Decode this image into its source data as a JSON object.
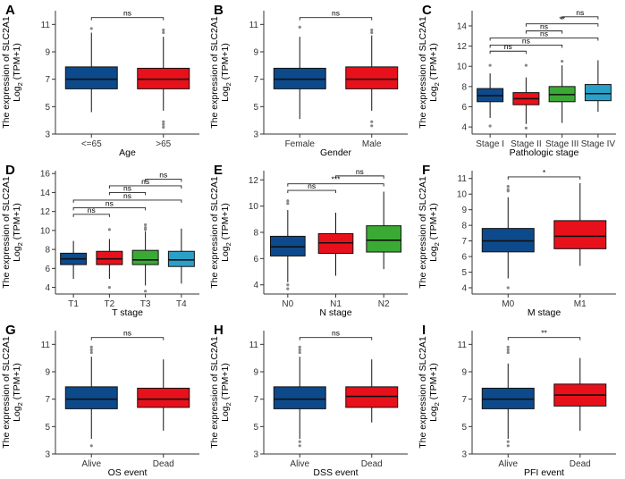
{
  "chart_data": [
    {
      "id": "A",
      "type": "box",
      "ylabel_line1": "The expression of SLC2A1",
      "ylabel_line2_main": "Log",
      "ylabel_line2_sub": "2",
      "ylabel_line2_rest": " (TPM+1)",
      "xlabel": "Age",
      "ylim": [
        3,
        12
      ],
      "yticks": [
        3,
        5,
        7,
        9,
        11
      ],
      "categories": [
        "<=65",
        ">65"
      ],
      "colors": [
        "#0d4a8c",
        "#e8111b"
      ],
      "boxes": [
        {
          "whislo": 4.6,
          "q1": 6.3,
          "med": 7.0,
          "q3": 7.9,
          "whishi": 10.4,
          "outliers": [
            10.7
          ]
        },
        {
          "whislo": 4.7,
          "q1": 6.3,
          "med": 7.0,
          "q3": 7.8,
          "whishi": 10.1,
          "outliers": [
            10.6,
            10.4,
            3.9,
            3.7,
            3.5
          ]
        }
      ],
      "comparisons": [
        {
          "from": 0,
          "to": 1,
          "label": "ns",
          "y": 11.5
        }
      ]
    },
    {
      "id": "B",
      "type": "box",
      "ylabel_line1": "The expression of SLC2A1",
      "ylabel_line2_main": "Log",
      "ylabel_line2_sub": "2",
      "ylabel_line2_rest": " (TPM+1)",
      "xlabel": "Gender",
      "ylim": [
        3,
        12
      ],
      "yticks": [
        3,
        5,
        7,
        9,
        11
      ],
      "categories": [
        "Female",
        "Male"
      ],
      "colors": [
        "#0d4a8c",
        "#e8111b"
      ],
      "boxes": [
        {
          "whislo": 4.1,
          "q1": 6.3,
          "med": 7.0,
          "q3": 7.8,
          "whishi": 10.1,
          "outliers": [
            10.8
          ]
        },
        {
          "whislo": 4.7,
          "q1": 6.3,
          "med": 7.0,
          "q3": 7.9,
          "whishi": 10.2,
          "outliers": [
            10.6,
            10.4,
            3.9,
            3.6
          ]
        }
      ],
      "comparisons": [
        {
          "from": 0,
          "to": 1,
          "label": "ns",
          "y": 11.5
        }
      ]
    },
    {
      "id": "C",
      "type": "box",
      "ylabel_line1": "The expression of SLC2A1",
      "ylabel_line2_main": "Log",
      "ylabel_line2_sub": "2",
      "ylabel_line2_rest": " (TPM+1)",
      "xlabel": "Pathologic stage",
      "ylim": [
        3.3,
        15.5
      ],
      "yticks": [
        4,
        6,
        8,
        10,
        12,
        14
      ],
      "categories": [
        "Stage I",
        "Stage II",
        "Stage III",
        "Stage IV"
      ],
      "colors": [
        "#0d4a8c",
        "#e8111b",
        "#3aaa35",
        "#2aa0c8"
      ],
      "boxes": [
        {
          "whislo": 4.9,
          "q1": 6.5,
          "med": 7.1,
          "q3": 7.8,
          "whishi": 9.3,
          "outliers": [
            10.1,
            4.1
          ]
        },
        {
          "whislo": 4.3,
          "q1": 6.2,
          "med": 6.8,
          "q3": 7.4,
          "whishi": 8.9,
          "outliers": [
            10.1,
            3.9
          ]
        },
        {
          "whislo": 4.4,
          "q1": 6.5,
          "med": 7.2,
          "q3": 8.0,
          "whishi": 10.1,
          "outliers": [
            10.5
          ]
        },
        {
          "whislo": 5.5,
          "q1": 6.6,
          "med": 7.3,
          "q3": 8.2,
          "whishi": 10.6,
          "outliers": []
        }
      ],
      "comparisons": [
        {
          "from": 0,
          "to": 1,
          "label": "ns",
          "y": 11.5
        },
        {
          "from": 0,
          "to": 2,
          "label": "ns",
          "y": 12.1
        },
        {
          "from": 0,
          "to": 3,
          "label": "ns",
          "y": 12.8
        },
        {
          "from": 1,
          "to": 2,
          "label": "ns",
          "y": 13.5
        },
        {
          "from": 1,
          "to": 3,
          "label": "**",
          "y": 14.2
        },
        {
          "from": 2,
          "to": 3,
          "label": "ns",
          "y": 14.9
        }
      ]
    },
    {
      "id": "D",
      "type": "box",
      "ylabel_line1": "The expression of SLC2A1",
      "ylabel_line2_main": "Log",
      "ylabel_line2_sub": "2",
      "ylabel_line2_rest": " (TPM+1)",
      "xlabel": "T stage",
      "ylim": [
        3.3,
        16.3
      ],
      "yticks": [
        4,
        6,
        8,
        10,
        12,
        14,
        16
      ],
      "categories": [
        "T1",
        "T2",
        "T3",
        "T4"
      ],
      "colors": [
        "#0d4a8c",
        "#e8111b",
        "#3aaa35",
        "#2aa0c8"
      ],
      "boxes": [
        {
          "whislo": 4.9,
          "q1": 6.4,
          "med": 7.0,
          "q3": 7.6,
          "whishi": 8.9,
          "outliers": []
        },
        {
          "whislo": 4.9,
          "q1": 6.4,
          "med": 7.0,
          "q3": 7.8,
          "whishi": 9.1,
          "outliers": [
            10.1,
            4.0
          ]
        },
        {
          "whislo": 4.2,
          "q1": 6.4,
          "med": 6.9,
          "q3": 7.9,
          "whishi": 9.9,
          "outliers": [
            10.6,
            10.3,
            10.1,
            3.6
          ]
        },
        {
          "whislo": 4.4,
          "q1": 6.2,
          "med": 6.9,
          "q3": 7.8,
          "whishi": 10.2,
          "outliers": []
        }
      ],
      "comparisons": [
        {
          "from": 0,
          "to": 1,
          "label": "ns",
          "y": 11.7
        },
        {
          "from": 0,
          "to": 2,
          "label": "ns",
          "y": 12.4
        },
        {
          "from": 0,
          "to": 3,
          "label": "ns",
          "y": 13.2
        },
        {
          "from": 1,
          "to": 2,
          "label": "ns",
          "y": 14.0
        },
        {
          "from": 1,
          "to": 3,
          "label": "ns",
          "y": 14.7
        },
        {
          "from": 2,
          "to": 3,
          "label": "ns",
          "y": 15.4
        }
      ]
    },
    {
      "id": "E",
      "type": "box",
      "ylabel_line1": "The expression of SLC2A1",
      "ylabel_line2_main": "Log",
      "ylabel_line2_sub": "2",
      "ylabel_line2_rest": " (TPM+1)",
      "xlabel": "N stage",
      "ylim": [
        3.3,
        12.7
      ],
      "yticks": [
        4,
        6,
        8,
        10,
        12
      ],
      "categories": [
        "N0",
        "N1",
        "N2"
      ],
      "colors": [
        "#0d4a8c",
        "#e8111b",
        "#3aaa35"
      ],
      "boxes": [
        {
          "whislo": 4.2,
          "q1": 6.2,
          "med": 6.9,
          "q3": 7.7,
          "whishi": 9.7,
          "outliers": [
            10.4,
            10.2,
            4.0,
            3.7
          ]
        },
        {
          "whislo": 4.7,
          "q1": 6.4,
          "med": 7.2,
          "q3": 7.9,
          "whishi": 9.5,
          "outliers": []
        },
        {
          "whislo": 5.2,
          "q1": 6.5,
          "med": 7.4,
          "q3": 8.5,
          "whishi": 11.1,
          "outliers": []
        }
      ],
      "comparisons": [
        {
          "from": 0,
          "to": 1,
          "label": "ns",
          "y": 11.2
        },
        {
          "from": 0,
          "to": 2,
          "label": "***",
          "y": 11.7
        },
        {
          "from": 1,
          "to": 2,
          "label": "ns",
          "y": 12.3
        }
      ]
    },
    {
      "id": "F",
      "type": "box",
      "ylabel_line1": "The expression of SLC2A1",
      "ylabel_line2_main": "Log",
      "ylabel_line2_sub": "2",
      "ylabel_line2_rest": " (TPM+1)",
      "xlabel": "M stage",
      "ylim": [
        3.6,
        11.5
      ],
      "yticks": [
        4,
        5,
        6,
        7,
        8,
        9,
        10,
        11
      ],
      "categories": [
        "M0",
        "M1"
      ],
      "colors": [
        "#0d4a8c",
        "#e8111b"
      ],
      "boxes": [
        {
          "whislo": 4.6,
          "q1": 6.3,
          "med": 7.0,
          "q3": 7.8,
          "whishi": 9.8,
          "outliers": [
            10.5,
            10.3,
            10.2,
            4.0
          ]
        },
        {
          "whislo": 5.4,
          "q1": 6.5,
          "med": 7.3,
          "q3": 8.3,
          "whishi": 10.7,
          "outliers": []
        }
      ],
      "comparisons": [
        {
          "from": 0,
          "to": 1,
          "label": "*",
          "y": 11.1
        }
      ]
    },
    {
      "id": "G",
      "type": "box",
      "ylabel_line1": "The expression of SLC2A1",
      "ylabel_line2_main": "Log",
      "ylabel_line2_sub": "2",
      "ylabel_line2_rest": " (TPM+1)",
      "xlabel": "OS event",
      "ylim": [
        3,
        12
      ],
      "yticks": [
        3,
        5,
        7,
        9,
        11
      ],
      "categories": [
        "Alive",
        "Dead"
      ],
      "colors": [
        "#0d4a8c",
        "#e8111b"
      ],
      "boxes": [
        {
          "whislo": 4.1,
          "q1": 6.3,
          "med": 7.0,
          "q3": 7.9,
          "whishi": 10.1,
          "outliers": [
            10.8,
            10.6,
            10.4,
            3.6
          ]
        },
        {
          "whislo": 4.7,
          "q1": 6.4,
          "med": 7.0,
          "q3": 7.8,
          "whishi": 9.9,
          "outliers": []
        }
      ],
      "comparisons": [
        {
          "from": 0,
          "to": 1,
          "label": "ns",
          "y": 11.5
        }
      ]
    },
    {
      "id": "H",
      "type": "box",
      "ylabel_line1": "The expression of SLC2A1",
      "ylabel_line2_main": "Log",
      "ylabel_line2_sub": "2",
      "ylabel_line2_rest": " (TPM+1)",
      "xlabel": "DSS event",
      "ylim": [
        3,
        12
      ],
      "yticks": [
        3,
        5,
        7,
        9,
        11
      ],
      "categories": [
        "Alive",
        "Dead"
      ],
      "colors": [
        "#0d4a8c",
        "#e8111b"
      ],
      "boxes": [
        {
          "whislo": 4.1,
          "q1": 6.3,
          "med": 7.0,
          "q3": 7.9,
          "whishi": 10.1,
          "outliers": [
            10.8,
            10.6,
            10.4,
            3.9,
            3.6
          ]
        },
        {
          "whislo": 5.3,
          "q1": 6.4,
          "med": 7.2,
          "q3": 7.9,
          "whishi": 9.9,
          "outliers": []
        }
      ],
      "comparisons": [
        {
          "from": 0,
          "to": 1,
          "label": "ns",
          "y": 11.5
        }
      ]
    },
    {
      "id": "I",
      "type": "box",
      "ylabel_line1": "The expression of SLC2A1",
      "ylabel_line2_main": "Log",
      "ylabel_line2_sub": "2",
      "ylabel_line2_rest": " (TPM+1)",
      "xlabel": "PFI event",
      "ylim": [
        3,
        12
      ],
      "yticks": [
        3,
        5,
        7,
        9,
        11
      ],
      "categories": [
        "Alive",
        "Dead"
      ],
      "colors": [
        "#0d4a8c",
        "#e8111b"
      ],
      "boxes": [
        {
          "whislo": 4.1,
          "q1": 6.3,
          "med": 7.0,
          "q3": 7.8,
          "whishi": 9.6,
          "outliers": [
            10.8,
            10.6,
            10.4,
            3.9,
            3.6
          ]
        },
        {
          "whislo": 4.7,
          "q1": 6.5,
          "med": 7.3,
          "q3": 8.1,
          "whishi": 10.0,
          "outliers": []
        }
      ],
      "comparisons": [
        {
          "from": 0,
          "to": 1,
          "label": "**",
          "y": 11.5
        }
      ]
    }
  ]
}
